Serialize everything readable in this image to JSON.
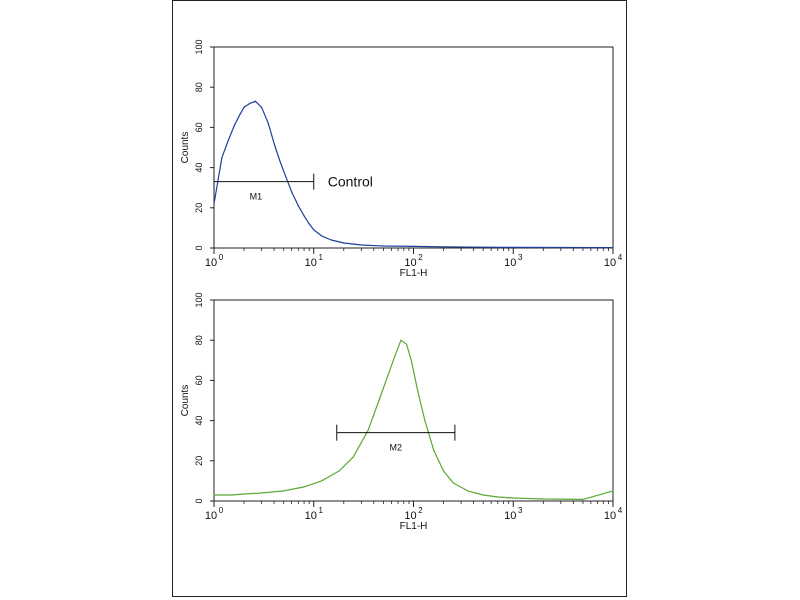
{
  "chart_data": [
    {
      "type": "line",
      "xscale": "log",
      "xlim": [
        1,
        10000
      ],
      "ylim": [
        0,
        100
      ],
      "xlabel": "FL1-H",
      "ylabel": "Counts",
      "yticks": [
        "0",
        "20",
        "40",
        "60",
        "80",
        "100"
      ],
      "xticks": [
        {
          "base": "10",
          "exp": "0"
        },
        {
          "base": "10",
          "exp": "1"
        },
        {
          "base": "10",
          "exp": "2"
        },
        {
          "base": "10",
          "exp": "3"
        },
        {
          "base": "10",
          "exp": "4"
        }
      ],
      "annotation": "Control",
      "series": [
        {
          "color": "#1f3f9a",
          "x": [
            1,
            1.1,
            1.2,
            1.4,
            1.6,
            1.8,
            2.0,
            2.3,
            2.6,
            3.0,
            3.5,
            4.0,
            4.6,
            5.3,
            6.0,
            7.0,
            8.0,
            9.0,
            10,
            12,
            15,
            20,
            30,
            50,
            100,
            200,
            500,
            1000,
            10000
          ],
          "y": [
            22,
            34,
            45,
            54,
            61,
            66,
            70,
            72,
            73,
            70,
            62,
            52,
            43,
            35,
            28,
            21,
            16,
            12,
            9,
            6,
            4,
            2.5,
            1.5,
            1,
            0.8,
            0.6,
            0.4,
            0.3,
            0.2
          ]
        }
      ],
      "marker": {
        "label": "M1",
        "x_start": 1,
        "x_end": 10,
        "y": 33
      }
    },
    {
      "type": "line",
      "xscale": "log",
      "xlim": [
        1,
        10000
      ],
      "ylim": [
        0,
        100
      ],
      "xlabel": "FL1-H",
      "ylabel": "Counts",
      "yticks": [
        "0",
        "20",
        "40",
        "60",
        "80",
        "100"
      ],
      "xticks": [
        {
          "base": "10",
          "exp": "0"
        },
        {
          "base": "10",
          "exp": "1"
        },
        {
          "base": "10",
          "exp": "2"
        },
        {
          "base": "10",
          "exp": "3"
        },
        {
          "base": "10",
          "exp": "4"
        }
      ],
      "series": [
        {
          "color": "#5aa832",
          "x": [
            1,
            1.5,
            2,
            3,
            5,
            8,
            12,
            18,
            25,
            35,
            45,
            55,
            65,
            75,
            85,
            95,
            110,
            130,
            160,
            200,
            250,
            350,
            500,
            700,
            1000,
            2000,
            5000,
            10000
          ],
          "y": [
            3,
            3,
            3.5,
            4,
            5,
            7,
            10,
            15,
            22,
            35,
            50,
            62,
            72,
            80,
            78,
            70,
            55,
            40,
            25,
            15,
            9,
            5,
            3,
            2,
            1.5,
            1,
            0.8,
            5
          ]
        }
      ],
      "marker": {
        "label": "M2",
        "x_start": 17,
        "x_end": 260,
        "y": 34
      }
    }
  ]
}
